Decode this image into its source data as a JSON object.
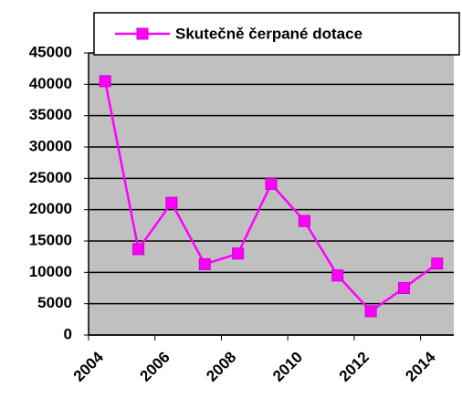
{
  "chart_data": {
    "type": "line",
    "x": [
      2004.5,
      2005.5,
      2006.5,
      2007.5,
      2008.5,
      2009.5,
      2010.5,
      2011.5,
      2012.5,
      2013.5,
      2014.5
    ],
    "series": [
      {
        "name": "Skutečně čerpané dotace",
        "color": "#ff00ff",
        "values": [
          40500,
          13700,
          21100,
          11300,
          13000,
          24100,
          18200,
          9500,
          3800,
          7500,
          11400
        ]
      }
    ],
    "xlim": [
      2004,
      2015
    ],
    "xticks": [
      2004,
      2006,
      2008,
      2010,
      2012,
      2014
    ],
    "ylim": [
      0,
      45000
    ],
    "yticks": [
      0,
      5000,
      10000,
      15000,
      20000,
      25000,
      30000,
      35000,
      40000,
      45000
    ],
    "grid": true,
    "legend": "top",
    "plot_background": "#c0c0c0"
  }
}
